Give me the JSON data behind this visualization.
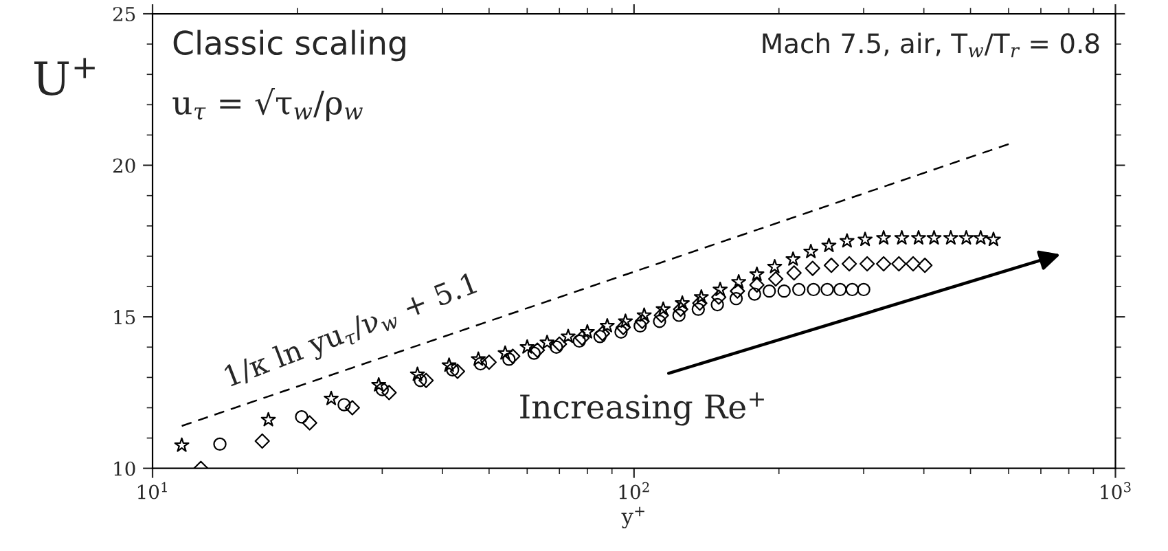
{
  "chart_data": {
    "type": "scatter",
    "xlabel": "y$^{+}$",
    "ylabel": "U$^{+}$",
    "log": "x",
    "xlim": [
      10,
      1000
    ],
    "xticks": [
      {
        "value": 10,
        "label": "10$^{1}$"
      },
      {
        "value": 100,
        "label": "10$^{2}$"
      },
      {
        "value": 1000,
        "label": "10$^{3}$"
      }
    ],
    "ylim": [
      10,
      25
    ],
    "yticks": [
      10,
      15,
      20,
      25
    ],
    "grid": false,
    "legend": false,
    "series": [
      {
        "type": "line",
        "color": "#000000",
        "marker": "none",
        "line_style": "dashed",
        "x": [
          11.5,
          600
        ],
        "values": [
          11.4,
          20.7
        ]
      },
      {
        "color": "#000000",
        "marker": "circle",
        "x": [
          13.8,
          20.4,
          25,
          30,
          36,
          42,
          48,
          55,
          62,
          69,
          77,
          85,
          94,
          103,
          113,
          124,
          136,
          149,
          163,
          178,
          191,
          205,
          220,
          236,
          252,
          268,
          284,
          300
        ],
        "values": [
          10.8,
          11.7,
          12.1,
          12.6,
          12.9,
          13.25,
          13.45,
          13.6,
          13.8,
          14.0,
          14.2,
          14.35,
          14.5,
          14.7,
          14.85,
          15.05,
          15.25,
          15.4,
          15.6,
          15.75,
          15.85,
          15.85,
          15.9,
          15.9,
          15.9,
          15.9,
          15.9,
          15.9
        ]
      },
      {
        "color": "#000000",
        "marker": "diamond",
        "x": [
          12.6,
          16.9,
          21.2,
          26,
          31,
          37,
          43,
          50,
          56,
          63,
          70,
          78,
          86,
          95,
          104,
          114,
          125,
          137,
          150,
          164,
          180,
          197,
          215,
          235,
          257,
          280,
          305,
          330,
          355,
          380,
          402
        ],
        "values": [
          10.0,
          10.9,
          11.5,
          12.0,
          12.5,
          12.9,
          13.2,
          13.5,
          13.7,
          13.9,
          14.1,
          14.3,
          14.45,
          14.65,
          14.85,
          15.05,
          15.25,
          15.45,
          15.65,
          15.85,
          16.05,
          16.25,
          16.45,
          16.6,
          16.7,
          16.75,
          16.75,
          16.75,
          16.75,
          16.75,
          16.7
        ]
      },
      {
        "color": "#000000",
        "marker": "star",
        "x": [
          11.5,
          17.4,
          23.5,
          29.5,
          35.5,
          41.3,
          47.5,
          54,
          60,
          66,
          73,
          80,
          88,
          96,
          105,
          115,
          126,
          138,
          151,
          165,
          180,
          196,
          214,
          233,
          254,
          277,
          302,
          330,
          360,
          390,
          420,
          455,
          490,
          525,
          558
        ],
        "values": [
          10.76,
          11.6,
          12.3,
          12.75,
          13.1,
          13.4,
          13.6,
          13.8,
          14.0,
          14.15,
          14.35,
          14.5,
          14.7,
          14.85,
          15.05,
          15.25,
          15.45,
          15.65,
          15.9,
          16.15,
          16.4,
          16.65,
          16.9,
          17.15,
          17.35,
          17.5,
          17.55,
          17.6,
          17.6,
          17.6,
          17.6,
          17.6,
          17.6,
          17.6,
          17.55
        ]
      }
    ],
    "annotations": [
      "Classic scaling",
      "u$_{τ}$ = √τ$_{w}$/ρ$_{w}$",
      "Mach 7.5, air, T$_{w}$/T$_{r}$ = 0.8",
      "1/κ ln yu$_{τ}$/ν$_{w}$ + 5.1",
      "Increasing Re$^{+}$"
    ]
  }
}
